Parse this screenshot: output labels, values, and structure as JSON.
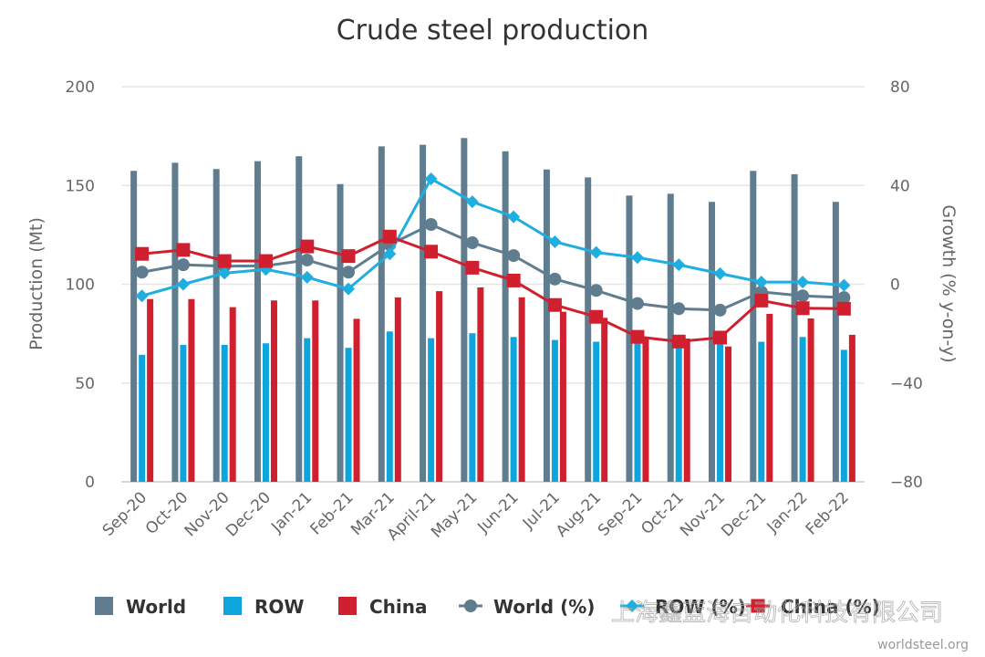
{
  "chart_data": {
    "type": "bar+line",
    "title": "Crude steel production",
    "ylabel": "Production (Mt)",
    "y2label": "Growth (% y-on-y)",
    "ylim": [
      0,
      200
    ],
    "y2lim": [
      -80,
      80
    ],
    "yticks": [
      0,
      50,
      100,
      150,
      200
    ],
    "y2ticks": [
      -80,
      -40,
      0,
      40,
      80
    ],
    "grid": true,
    "legend": "bottom",
    "categories": [
      "Sep-20",
      "Oct-20",
      "Nov-20",
      "Dec-20",
      "Jan-21",
      "Feb-21",
      "Mar-21",
      "April-21",
      "May-21",
      "Jun-21",
      "Jul-21",
      "Aug-21",
      "Sep-21",
      "Oct-21",
      "Nov-21",
      "Dec-21",
      "Jan-22",
      "Feb-22"
    ],
    "bar_series": [
      {
        "name": "World",
        "color": "#5f7d8e",
        "values": [
          157.4,
          161.5,
          158.3,
          162.3,
          164.8,
          150.7,
          169.8,
          170.6,
          174.0,
          167.3,
          158.1,
          154.1,
          144.9,
          145.8,
          141.7,
          157.4,
          155.7,
          141.7
        ]
      },
      {
        "name": "ROW",
        "color": "#0ea5dd",
        "values": [
          64.3,
          69.3,
          69.3,
          70.1,
          72.7,
          67.8,
          76.1,
          72.7,
          75.2,
          73.3,
          71.8,
          70.9,
          70.0,
          70.0,
          70.0,
          70.9,
          73.3,
          66.8
        ]
      },
      {
        "name": "China",
        "color": "#d0202f",
        "values": [
          92.5,
          92.5,
          88.4,
          91.8,
          91.8,
          82.5,
          93.3,
          96.5,
          98.4,
          93.4,
          86.1,
          83.0,
          73.0,
          72.5,
          68.5,
          85.0,
          82.7,
          74.4
        ]
      }
    ],
    "line_series": [
      {
        "name": "World (%)",
        "color": "#5f7d8e",
        "marker": "circle",
        "values": [
          4.9,
          7.9,
          7.3,
          7.5,
          9.8,
          4.9,
          16.0,
          24.2,
          16.8,
          11.6,
          2.1,
          -2.5,
          -7.8,
          -9.9,
          -10.5,
          -3.1,
          -4.7,
          -5.4
        ]
      },
      {
        "name": "ROW (%)",
        "color": "#1eaee0",
        "marker": "diamond",
        "values": [
          -4.7,
          0.0,
          4.5,
          6.0,
          2.8,
          -1.9,
          12.3,
          42.7,
          33.4,
          27.3,
          17.2,
          12.9,
          10.8,
          7.9,
          4.3,
          0.9,
          0.9,
          -0.4
        ]
      },
      {
        "name": "China (%)",
        "color": "#d0202f",
        "marker": "square",
        "values": [
          12.3,
          13.9,
          9.4,
          9.4,
          15.3,
          11.4,
          19.3,
          13.2,
          6.7,
          1.5,
          -8.4,
          -13.2,
          -21.3,
          -23.2,
          -21.6,
          -6.6,
          -9.7,
          -9.9
        ]
      }
    ]
  },
  "legend_labels": [
    "World",
    "ROW",
    "China",
    "World (%)",
    "ROW (%)",
    "China (%)"
  ],
  "credit": "worldsteel.org",
  "watermark": "上海鑫蓝海自动化科技有限公司"
}
